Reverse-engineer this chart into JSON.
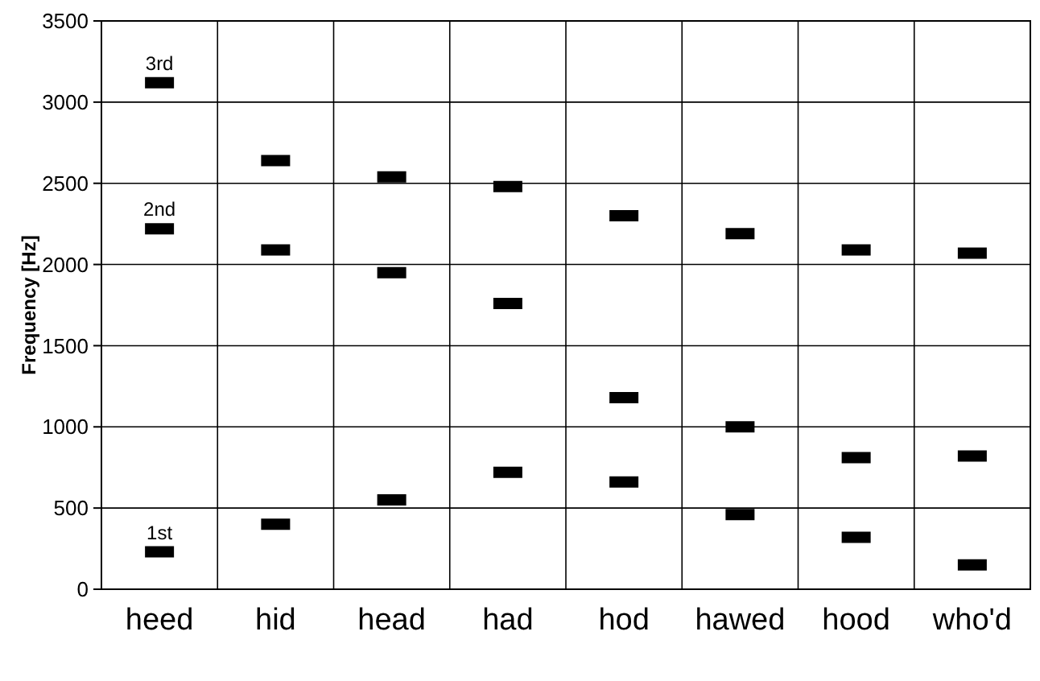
{
  "chart_data": {
    "type": "scatter",
    "ylabel": "Frequency [Hz]",
    "categories": [
      "heed",
      "hid",
      "head",
      "had",
      "hod",
      "hawed",
      "hood",
      "who'd"
    ],
    "series": [
      {
        "name": "1st",
        "color": "#000000",
        "values": [
          230,
          400,
          550,
          720,
          660,
          460,
          320,
          150
        ]
      },
      {
        "name": "2nd",
        "color": "#000000",
        "values": [
          2220,
          2090,
          1950,
          1760,
          1180,
          1000,
          810,
          820
        ]
      },
      {
        "name": "3rd",
        "color": "#000000",
        "values": [
          3120,
          2640,
          2540,
          2480,
          2300,
          2190,
          2090,
          2070
        ]
      }
    ],
    "ylim": [
      0,
      3500
    ],
    "yticks": [
      0,
      500,
      1000,
      1500,
      2000,
      2500,
      3000,
      3500
    ],
    "grid": true
  }
}
